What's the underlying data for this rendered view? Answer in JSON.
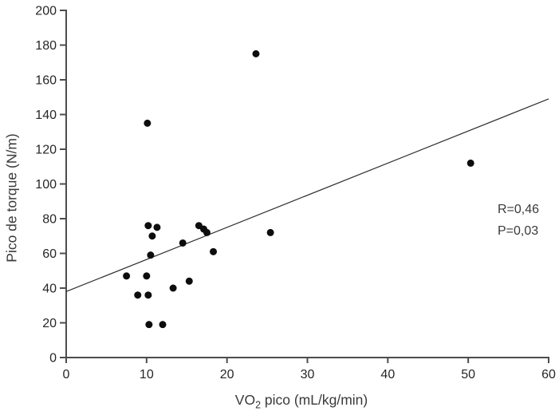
{
  "chart_data": {
    "type": "scatter",
    "title": "",
    "xlabel": {
      "prefix": "VO",
      "sub": "2",
      "suffix": " pico (mL/kg/min)"
    },
    "ylabel": "Pico de torque (N/m)",
    "xlim": [
      0,
      60
    ],
    "ylim": [
      0,
      200
    ],
    "xticks": [
      0,
      10,
      20,
      30,
      40,
      50,
      60
    ],
    "yticks": [
      0,
      20,
      40,
      60,
      80,
      100,
      120,
      140,
      160,
      180,
      200
    ],
    "grid": false,
    "legend": "none",
    "points": [
      [
        10.1,
        135
      ],
      [
        23.6,
        175
      ],
      [
        50.3,
        112
      ],
      [
        10.2,
        76
      ],
      [
        11.3,
        75
      ],
      [
        10.7,
        70
      ],
      [
        16.5,
        76
      ],
      [
        17.1,
        74
      ],
      [
        17.5,
        72
      ],
      [
        25.4,
        72
      ],
      [
        14.5,
        66
      ],
      [
        18.3,
        61
      ],
      [
        10.5,
        59
      ],
      [
        7.5,
        47
      ],
      [
        10.0,
        47
      ],
      [
        15.3,
        44
      ],
      [
        13.3,
        40
      ],
      [
        8.9,
        36
      ],
      [
        10.2,
        36
      ],
      [
        10.3,
        19
      ],
      [
        12.0,
        19
      ]
    ],
    "trendline": {
      "x1": 0,
      "y1": 38,
      "x2": 60,
      "y2": 149
    },
    "annotation": {
      "r_label": "R=0,46",
      "p_label": "P=0,03"
    },
    "colors": {
      "point": "#0d0d0d",
      "trendline": "#2e2e2e",
      "axis": "#4d4d4d",
      "tick_text": "#262626",
      "label_text": "#3a3a3a"
    }
  }
}
